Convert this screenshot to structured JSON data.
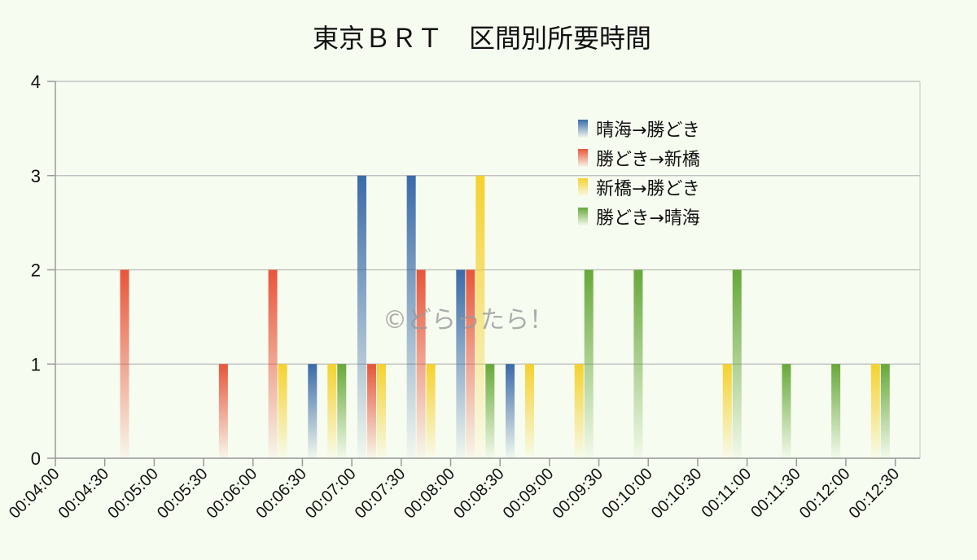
{
  "watermark": "©どらったら！",
  "chart_data": {
    "type": "bar",
    "title": "東京ＢＲＴ　区間別所要時間",
    "xlabel": "",
    "ylabel": "",
    "ylim": [
      0,
      4
    ],
    "yticks": [
      "0",
      "1",
      "2",
      "3",
      "4"
    ],
    "grid": true,
    "legend_position": "top-right",
    "categories": [
      "00:04:00",
      "00:04:30",
      "00:05:00",
      "00:05:30",
      "00:06:00",
      "00:06:30",
      "00:07:00",
      "00:07:30",
      "00:08:00",
      "00:08:30",
      "00:09:00",
      "00:09:30",
      "00:10:00",
      "00:10:30",
      "00:11:00",
      "00:11:30",
      "00:12:00",
      "00:12:30"
    ],
    "series": [
      {
        "name": "晴海→勝どき",
        "color": "#3a6aa8",
        "values": [
          0,
          0,
          0,
          0,
          0,
          1,
          3,
          3,
          2,
          1,
          0,
          0,
          0,
          0,
          0,
          0,
          0,
          0
        ]
      },
      {
        "name": "勝どき→新橋",
        "color": "#e8553a",
        "values": [
          0,
          2,
          0,
          1,
          2,
          0,
          1,
          2,
          2,
          0,
          0,
          0,
          0,
          0,
          0,
          0,
          0,
          0
        ]
      },
      {
        "name": "新橋→勝どき",
        "color": "#f5d12e",
        "values": [
          0,
          0,
          0,
          0,
          1,
          1,
          1,
          1,
          3,
          1,
          1,
          0,
          0,
          1,
          0,
          0,
          1,
          0
        ]
      },
      {
        "name": "勝どき→晴海",
        "color": "#67a83a",
        "values": [
          0,
          0,
          0,
          0,
          0,
          1,
          0,
          0,
          1,
          0,
          2,
          2,
          0,
          2,
          1,
          1,
          1,
          0
        ]
      }
    ]
  }
}
